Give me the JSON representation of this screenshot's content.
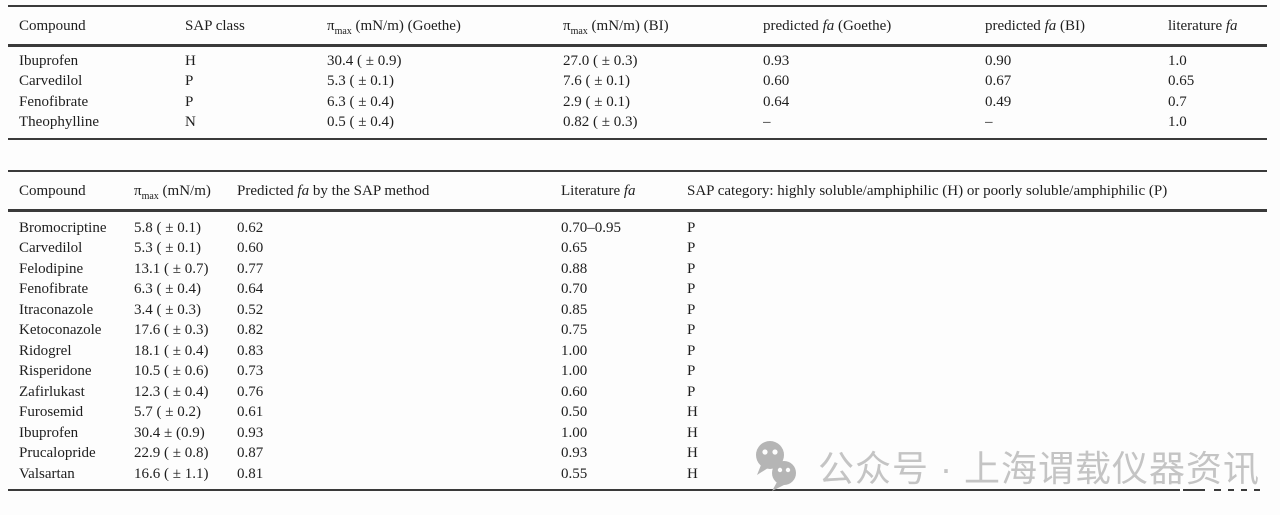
{
  "page": {
    "rule_color": "#3a3a3a",
    "text_color": "#1e1e1e",
    "background": "#fdfdfd"
  },
  "tables": [
    {
      "name": "comparison-table-goethe-bi",
      "columns": [
        "Compound",
        "SAP class",
        "π_{max} (mN/m) (Goethe)",
        "π_{max} (mN/m) (BI)",
        "predicted *fa* (Goethe)",
        "predicted *fa* (BI)",
        "literature *fa*"
      ],
      "rows": [
        [
          "Ibuprofen",
          "H",
          "30.4 ( ± 0.9)",
          "27.0 ( ± 0.3)",
          "0.93",
          "0.90",
          "1.0"
        ],
        [
          "Carvedilol",
          "P",
          "5.3 ( ± 0.1)",
          "7.6 ( ± 0.1)",
          "0.60",
          "0.67",
          "0.65"
        ],
        [
          "Fenofibrate",
          "P",
          "6.3 ( ± 0.4)",
          "2.9 ( ± 0.1)",
          "0.64",
          "0.49",
          "0.7"
        ],
        [
          "Theophylline",
          "N",
          "0.5 ( ± 0.4)",
          "0.82 ( ± 0.3)",
          "–",
          "–",
          "1.0"
        ]
      ]
    },
    {
      "name": "sap-method-prediction-table",
      "columns": [
        "Compound",
        "π_{max} (mN/m)",
        "Predicted *fa* by the SAP method",
        "Literature *fa*",
        "SAP category: highly soluble/amphiphilic (H) or poorly soluble/amphiphilic (P)"
      ],
      "rows": [
        [
          "Bromocriptine",
          "5.8 ( ± 0.1)",
          "0.62",
          "0.70–0.95",
          "P"
        ],
        [
          "Carvedilol",
          "5.3 ( ± 0.1)",
          "0.60",
          "0.65",
          "P"
        ],
        [
          "Felodipine",
          "13.1 ( ± 0.7)",
          "0.77",
          "0.88",
          "P"
        ],
        [
          "Fenofibrate",
          "6.3 ( ± 0.4)",
          "0.64",
          "0.70",
          "P"
        ],
        [
          "Itraconazole",
          "3.4 ( ± 0.3)",
          "0.52",
          "0.85",
          "P"
        ],
        [
          "Ketoconazole",
          "17.6 ( ± 0.3)",
          "0.82",
          "0.75",
          "P"
        ],
        [
          "Ridogrel",
          "18.1 ( ± 0.4)",
          "0.83",
          "1.00",
          "P"
        ],
        [
          "Risperidone",
          "10.5 ( ± 0.6)",
          "0.73",
          "1.00",
          "P"
        ],
        [
          "Zafirlukast",
          "12.3 ( ± 0.4)",
          "0.76",
          "0.60",
          "P"
        ],
        [
          "Furosemid",
          "5.7 ( ± 0.2)",
          "0.61",
          "0.50",
          "H"
        ],
        [
          "Ibuprofen",
          "30.4 ± (0.9)",
          "0.93",
          "1.00",
          "H"
        ],
        [
          "Prucalopride",
          "22.9 ( ± 0.8)",
          "0.87",
          "0.93",
          "H"
        ],
        [
          "Valsartan",
          "16.6 ( ± 1.1)",
          "0.81",
          "0.55",
          "H"
        ]
      ]
    }
  ],
  "watermark": {
    "icon": "wechat-icon",
    "text": "公众号 · 上海谓载仪器资讯",
    "color": "#c4c4c4",
    "icon_color": "#b5b5b5"
  }
}
